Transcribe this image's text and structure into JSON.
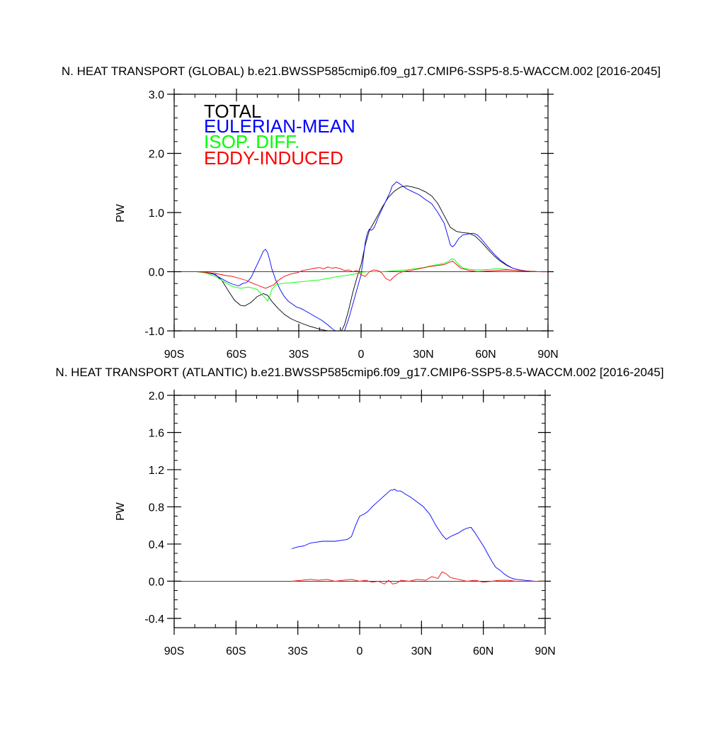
{
  "chart_data": [
    {
      "type": "line",
      "title": "N. HEAT TRANSPORT (GLOBAL) b.e21.BWSSP585cmip6.f09_g17.CMIP6-SSP5-8.5-WACCM.002 [2016-2045]",
      "xlabel": "",
      "ylabel": "PW",
      "xlim": [
        -90,
        90
      ],
      "ylim": [
        -1.0,
        3.0
      ],
      "x_ticks": [
        -90,
        -60,
        -30,
        0,
        30,
        60,
        90
      ],
      "x_tick_labels": [
        "90S",
        "60S",
        "30S",
        "0",
        "30N",
        "60N",
        "90N"
      ],
      "y_ticks": [
        -1.0,
        0.0,
        1.0,
        2.0,
        3.0
      ],
      "y_tick_labels": [
        "-1.0",
        "0.0",
        "1.0",
        "2.0",
        "3.0"
      ],
      "zero_line": true,
      "legend_position": "top-left",
      "series": [
        {
          "name": "TOTAL",
          "color": "#000000",
          "x": [
            -79,
            -75,
            -70,
            -67,
            -64,
            -61,
            -58,
            -56,
            -53,
            -50,
            -47,
            -45,
            -43,
            -40,
            -37,
            -34,
            -31,
            -28,
            -25,
            -22,
            -19,
            -16,
            -13,
            -10,
            -8,
            -6,
            -4,
            -2,
            0,
            2,
            4,
            6,
            8,
            10,
            13,
            16,
            19,
            22,
            25,
            28,
            31,
            34,
            37,
            40,
            43,
            46,
            49,
            52,
            55,
            58,
            61,
            64,
            67,
            70,
            73,
            76,
            80,
            85,
            90
          ],
          "y": [
            0.0,
            -0.01,
            -0.05,
            -0.15,
            -0.32,
            -0.48,
            -0.57,
            -0.58,
            -0.52,
            -0.42,
            -0.37,
            -0.4,
            -0.5,
            -0.62,
            -0.72,
            -0.79,
            -0.84,
            -0.88,
            -0.92,
            -0.95,
            -0.98,
            -1.0,
            -1.02,
            -1.04,
            -0.9,
            -0.65,
            -0.35,
            -0.1,
            0.12,
            0.45,
            0.7,
            0.82,
            0.95,
            1.08,
            1.25,
            1.36,
            1.43,
            1.45,
            1.43,
            1.4,
            1.35,
            1.28,
            1.15,
            0.95,
            0.75,
            0.68,
            0.66,
            0.65,
            0.6,
            0.5,
            0.38,
            0.27,
            0.18,
            0.11,
            0.06,
            0.03,
            0.01,
            0.0,
            0.0
          ]
        },
        {
          "name": "EULERIAN-MEAN",
          "color": "#0000ff",
          "x": [
            -79,
            -75,
            -71,
            -68,
            -65,
            -62,
            -59,
            -57,
            -55,
            -53,
            -51,
            -49,
            -47,
            -46,
            -45,
            -44,
            -43,
            -41,
            -39,
            -37,
            -35,
            -33,
            -31,
            -29,
            -27,
            -25,
            -22,
            -19,
            -16,
            -14,
            -13,
            -12,
            -10,
            -8,
            -6,
            -4,
            -2,
            0,
            1,
            2,
            3,
            4,
            5,
            6,
            7,
            8,
            10,
            12,
            14,
            15,
            16,
            17,
            18,
            20,
            22,
            25,
            28,
            31,
            34,
            37,
            40,
            42,
            43,
            44,
            45,
            47,
            49,
            52,
            54,
            56,
            58,
            61,
            64,
            67,
            70,
            73,
            76,
            80,
            85,
            90
          ],
          "y": [
            0.0,
            -0.01,
            -0.04,
            -0.1,
            -0.16,
            -0.21,
            -0.24,
            -0.2,
            -0.18,
            -0.1,
            0.05,
            0.2,
            0.35,
            0.38,
            0.32,
            0.2,
            0.05,
            -0.15,
            -0.3,
            -0.42,
            -0.5,
            -0.55,
            -0.6,
            -0.62,
            -0.66,
            -0.7,
            -0.76,
            -0.82,
            -0.9,
            -0.96,
            -0.99,
            -1.0,
            -1.02,
            -1.0,
            -0.8,
            -0.55,
            -0.3,
            -0.05,
            0.2,
            0.5,
            0.65,
            0.72,
            0.7,
            0.73,
            0.8,
            0.9,
            1.05,
            1.2,
            1.35,
            1.45,
            1.48,
            1.52,
            1.5,
            1.45,
            1.4,
            1.35,
            1.3,
            1.22,
            1.15,
            1.0,
            0.82,
            0.58,
            0.45,
            0.42,
            0.45,
            0.56,
            0.62,
            0.64,
            0.65,
            0.62,
            0.55,
            0.42,
            0.3,
            0.2,
            0.12,
            0.06,
            0.03,
            0.01,
            0.0,
            0.0
          ]
        },
        {
          "name": "ISOP. DIFF.",
          "color": "#00ff00",
          "x": [
            -79,
            -75,
            -70,
            -66,
            -62,
            -58,
            -54,
            -50,
            -48,
            -46,
            -45,
            -44,
            -43,
            -41,
            -38,
            -35,
            -32,
            -29,
            -26,
            -23,
            -20,
            -17,
            -14,
            -11,
            -8,
            -5,
            -2,
            0,
            3,
            6,
            10,
            14,
            18,
            22,
            26,
            30,
            34,
            37,
            40,
            42,
            43,
            44,
            45,
            47,
            49,
            52,
            55,
            58,
            62,
            66,
            70,
            75,
            80,
            85,
            90
          ],
          "y": [
            0.0,
            -0.02,
            -0.08,
            -0.17,
            -0.25,
            -0.28,
            -0.26,
            -0.3,
            -0.38,
            -0.45,
            -0.5,
            -0.42,
            -0.3,
            -0.22,
            -0.2,
            -0.19,
            -0.18,
            -0.17,
            -0.16,
            -0.15,
            -0.14,
            -0.12,
            -0.1,
            -0.08,
            -0.07,
            -0.05,
            -0.03,
            -0.01,
            0.0,
            0.0,
            0.0,
            0.01,
            0.02,
            0.03,
            0.05,
            0.07,
            0.1,
            0.12,
            0.14,
            0.17,
            0.2,
            0.22,
            0.2,
            0.12,
            0.06,
            0.04,
            0.03,
            0.03,
            0.04,
            0.05,
            0.04,
            0.02,
            0.01,
            0.0,
            0.0
          ]
        },
        {
          "name": "EDDY-INDUCED",
          "color": "#ff0000",
          "x": [
            -79,
            -75,
            -70,
            -66,
            -62,
            -58,
            -55,
            -52,
            -49,
            -46,
            -44,
            -42,
            -40,
            -37,
            -34,
            -31,
            -28,
            -25,
            -22,
            -20,
            -18,
            -16,
            -14,
            -12,
            -10,
            -8,
            -6,
            -4,
            -2,
            0,
            2,
            4,
            6,
            8,
            10,
            12,
            14,
            16,
            18,
            20,
            24,
            28,
            32,
            36,
            40,
            42,
            44,
            46,
            48,
            52,
            56,
            60,
            65,
            70,
            75,
            80,
            85,
            90
          ],
          "y": [
            0.0,
            -0.01,
            -0.03,
            -0.06,
            -0.08,
            -0.12,
            -0.15,
            -0.2,
            -0.24,
            -0.28,
            -0.25,
            -0.22,
            -0.15,
            -0.08,
            -0.04,
            -0.02,
            0.02,
            0.04,
            0.06,
            0.07,
            0.05,
            0.08,
            0.06,
            0.07,
            0.05,
            0.02,
            0.03,
            0.0,
            0.02,
            -0.05,
            -0.08,
            0.0,
            0.03,
            0.02,
            -0.02,
            -0.12,
            -0.15,
            -0.08,
            -0.03,
            0.0,
            0.02,
            0.05,
            0.08,
            0.1,
            0.12,
            0.15,
            0.18,
            0.12,
            0.06,
            0.02,
            0.0,
            0.01,
            0.02,
            0.03,
            0.02,
            0.01,
            0.0,
            0.0
          ]
        }
      ]
    },
    {
      "type": "line",
      "title": "N. HEAT TRANSPORT (ATLANTIC) b.e21.BWSSP585cmip6.f09_g17.CMIP6-SSP5-8.5-WACCM.002 [2016-2045]",
      "xlabel": "",
      "ylabel": "PW",
      "xlim": [
        -90,
        90
      ],
      "ylim": [
        -0.5,
        2.0
      ],
      "x_ticks": [
        -90,
        -60,
        -30,
        0,
        30,
        60,
        90
      ],
      "x_tick_labels": [
        "90S",
        "60S",
        "30S",
        "0",
        "30N",
        "60N",
        "90N"
      ],
      "y_ticks": [
        -0.4,
        0.0,
        0.4,
        0.8,
        1.2,
        1.6,
        2.0
      ],
      "y_tick_labels": [
        "-0.4",
        "0.0",
        "0.4",
        "0.8",
        "1.2",
        "1.6",
        "2.0"
      ],
      "zero_line": true,
      "series": [
        {
          "name": "",
          "color": "#0000ff",
          "x": [
            -33,
            -30,
            -27,
            -24,
            -21,
            -18,
            -15,
            -12,
            -9,
            -6,
            -4,
            -2,
            0,
            2,
            4,
            6,
            8,
            10,
            12,
            14,
            15,
            16,
            17,
            18,
            20,
            22,
            25,
            28,
            31,
            34,
            37,
            40,
            42,
            44,
            46,
            48,
            50,
            52,
            54,
            56,
            58,
            60,
            62,
            64,
            66,
            68,
            70,
            72,
            74,
            76,
            80,
            85,
            90
          ],
          "y": [
            0.35,
            0.37,
            0.38,
            0.41,
            0.42,
            0.43,
            0.43,
            0.43,
            0.44,
            0.45,
            0.48,
            0.6,
            0.7,
            0.72,
            0.75,
            0.8,
            0.84,
            0.88,
            0.92,
            0.96,
            0.98,
            0.98,
            0.99,
            0.97,
            0.97,
            0.94,
            0.9,
            0.85,
            0.8,
            0.72,
            0.6,
            0.5,
            0.45,
            0.48,
            0.5,
            0.52,
            0.55,
            0.57,
            0.58,
            0.52,
            0.45,
            0.38,
            0.3,
            0.22,
            0.15,
            0.12,
            0.08,
            0.05,
            0.03,
            0.02,
            0.01,
            0.0,
            0.0
          ]
        },
        {
          "name": "",
          "color": "#ff0000",
          "x": [
            -33,
            -28,
            -24,
            -20,
            -16,
            -12,
            -8,
            -4,
            0,
            3,
            6,
            9,
            12,
            14,
            16,
            18,
            20,
            24,
            28,
            32,
            35,
            38,
            40,
            42,
            44,
            48,
            52,
            56,
            60,
            64,
            68,
            72,
            76,
            80,
            85,
            90
          ],
          "y": [
            0.0,
            0.01,
            0.02,
            0.01,
            0.02,
            0.0,
            0.01,
            0.02,
            0.0,
            0.01,
            -0.01,
            0.0,
            -0.03,
            0.01,
            -0.03,
            -0.02,
            0.01,
            0.0,
            0.02,
            0.01,
            0.05,
            0.03,
            0.1,
            0.08,
            0.04,
            0.02,
            0.0,
            0.01,
            -0.01,
            0.0,
            0.01,
            0.01,
            0.0,
            0.0,
            0.0,
            0.0
          ]
        }
      ]
    }
  ]
}
